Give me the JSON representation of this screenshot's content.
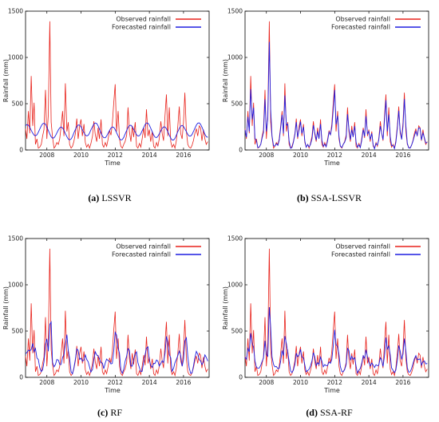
{
  "colors": {
    "observed": "#e8221b",
    "forecast": "#1f1fe0",
    "axis": "#000000"
  },
  "chart_data": [
    {
      "panel": "a",
      "caption_letter": "(a)",
      "caption_label": "LSSVR",
      "type": "line",
      "xlabel": "Time",
      "ylabel": "Rainfall (mm)",
      "xlim": [
        2006.75,
        2017.5
      ],
      "ylim": [
        0,
        1500
      ],
      "xticks": [
        2008,
        2010,
        2012,
        2014,
        2016
      ],
      "yticks": [
        0,
        500,
        1000,
        1500
      ],
      "legend_position": "top-right",
      "series": [
        {
          "name": "Observed rainfall",
          "color_key": "observed"
        },
        {
          "name": "Forecasted rainfall",
          "color_key": "forecast"
        }
      ],
      "forecast_mode": "smooth"
    },
    {
      "panel": "b",
      "caption_letter": "(b)",
      "caption_label": "SSA-LSSVR",
      "type": "line",
      "xlabel": "Time",
      "ylabel": "Rainfall (mm)",
      "xlim": [
        2006.75,
        2017.5
      ],
      "ylim": [
        0,
        1500
      ],
      "xticks": [
        2008,
        2010,
        2012,
        2014,
        2016
      ],
      "yticks": [
        0,
        500,
        1000,
        1500
      ],
      "legend_position": "top-right",
      "series": [
        {
          "name": "Observed rainfall",
          "color_key": "observed"
        },
        {
          "name": "Forecasted rainfall",
          "color_key": "forecast"
        }
      ],
      "forecast_mode": "track"
    },
    {
      "panel": "c",
      "caption_letter": "(c)",
      "caption_label": "RF",
      "type": "line",
      "xlabel": "Time",
      "ylabel": "Rainfall (mm)",
      "xlim": [
        2006.75,
        2017.5
      ],
      "ylim": [
        0,
        1500
      ],
      "xticks": [
        2008,
        2010,
        2012,
        2014,
        2016
      ],
      "yticks": [
        0,
        500,
        1000,
        1500
      ],
      "legend_position": "top-right",
      "series": [
        {
          "name": "Observed rainfall",
          "color_key": "observed"
        },
        {
          "name": "Forecasted rainfall",
          "color_key": "forecast"
        }
      ],
      "forecast_mode": "noisy"
    },
    {
      "panel": "d",
      "caption_letter": "(d)",
      "caption_label": "SSA-RF",
      "type": "line",
      "xlabel": "Time",
      "ylabel": "Rainfall (mm)",
      "xlim": [
        2006.75,
        2017.5
      ],
      "ylim": [
        0,
        1500
      ],
      "xticks": [
        2008,
        2010,
        2012,
        2014,
        2016
      ],
      "yticks": [
        0,
        500,
        1000,
        1500
      ],
      "legend_position": "top-right",
      "series": [
        {
          "name": "Observed rainfall",
          "color_key": "observed"
        },
        {
          "name": "Forecasted rainfall",
          "color_key": "forecast"
        }
      ],
      "forecast_mode": "partial"
    }
  ],
  "observed_rainfall": [
    {
      "x": 2006.75,
      "y": 230
    },
    {
      "x": 2006.83,
      "y": 120
    },
    {
      "x": 2006.92,
      "y": 420
    },
    {
      "x": 2007.0,
      "y": 180
    },
    {
      "x": 2007.08,
      "y": 800
    },
    {
      "x": 2007.17,
      "y": 260
    },
    {
      "x": 2007.25,
      "y": 510
    },
    {
      "x": 2007.33,
      "y": 60
    },
    {
      "x": 2007.42,
      "y": 120
    },
    {
      "x": 2007.5,
      "y": 20
    },
    {
      "x": 2007.58,
      "y": 30
    },
    {
      "x": 2007.67,
      "y": 60
    },
    {
      "x": 2007.75,
      "y": 150
    },
    {
      "x": 2007.83,
      "y": 220
    },
    {
      "x": 2007.92,
      "y": 650
    },
    {
      "x": 2008.0,
      "y": 120
    },
    {
      "x": 2008.08,
      "y": 380
    },
    {
      "x": 2008.17,
      "y": 1390
    },
    {
      "x": 2008.25,
      "y": 300
    },
    {
      "x": 2008.33,
      "y": 140
    },
    {
      "x": 2008.42,
      "y": 20
    },
    {
      "x": 2008.5,
      "y": 40
    },
    {
      "x": 2008.58,
      "y": 80
    },
    {
      "x": 2008.67,
      "y": 60
    },
    {
      "x": 2008.75,
      "y": 120
    },
    {
      "x": 2008.83,
      "y": 250
    },
    {
      "x": 2008.92,
      "y": 420
    },
    {
      "x": 2009.0,
      "y": 150
    },
    {
      "x": 2009.08,
      "y": 720
    },
    {
      "x": 2009.17,
      "y": 200
    },
    {
      "x": 2009.25,
      "y": 300
    },
    {
      "x": 2009.33,
      "y": 60
    },
    {
      "x": 2009.42,
      "y": 20
    },
    {
      "x": 2009.5,
      "y": 40
    },
    {
      "x": 2009.58,
      "y": 90
    },
    {
      "x": 2009.67,
      "y": 180
    },
    {
      "x": 2009.75,
      "y": 340
    },
    {
      "x": 2009.83,
      "y": 120
    },
    {
      "x": 2009.92,
      "y": 260
    },
    {
      "x": 2010.0,
      "y": 330
    },
    {
      "x": 2010.08,
      "y": 150
    },
    {
      "x": 2010.17,
      "y": 280
    },
    {
      "x": 2010.25,
      "y": 80
    },
    {
      "x": 2010.33,
      "y": 30
    },
    {
      "x": 2010.42,
      "y": 60
    },
    {
      "x": 2010.5,
      "y": 20
    },
    {
      "x": 2010.58,
      "y": 70
    },
    {
      "x": 2010.67,
      "y": 150
    },
    {
      "x": 2010.75,
      "y": 310
    },
    {
      "x": 2010.83,
      "y": 170
    },
    {
      "x": 2010.92,
      "y": 90
    },
    {
      "x": 2011.0,
      "y": 240
    },
    {
      "x": 2011.08,
      "y": 120
    },
    {
      "x": 2011.17,
      "y": 330
    },
    {
      "x": 2011.25,
      "y": 60
    },
    {
      "x": 2011.33,
      "y": 30
    },
    {
      "x": 2011.42,
      "y": 80
    },
    {
      "x": 2011.5,
      "y": 40
    },
    {
      "x": 2011.58,
      "y": 110
    },
    {
      "x": 2011.67,
      "y": 210
    },
    {
      "x": 2011.75,
      "y": 160
    },
    {
      "x": 2011.83,
      "y": 280
    },
    {
      "x": 2011.92,
      "y": 520
    },
    {
      "x": 2012.0,
      "y": 710
    },
    {
      "x": 2012.08,
      "y": 200
    },
    {
      "x": 2012.17,
      "y": 420
    },
    {
      "x": 2012.25,
      "y": 120
    },
    {
      "x": 2012.33,
      "y": 40
    },
    {
      "x": 2012.42,
      "y": 20
    },
    {
      "x": 2012.5,
      "y": 60
    },
    {
      "x": 2012.58,
      "y": 90
    },
    {
      "x": 2012.67,
      "y": 160
    },
    {
      "x": 2012.75,
      "y": 460
    },
    {
      "x": 2012.83,
      "y": 200
    },
    {
      "x": 2012.92,
      "y": 90
    },
    {
      "x": 2013.0,
      "y": 260
    },
    {
      "x": 2013.08,
      "y": 140
    },
    {
      "x": 2013.17,
      "y": 300
    },
    {
      "x": 2013.25,
      "y": 40
    },
    {
      "x": 2013.33,
      "y": 20
    },
    {
      "x": 2013.42,
      "y": 70
    },
    {
      "x": 2013.5,
      "y": 30
    },
    {
      "x": 2013.58,
      "y": 120
    },
    {
      "x": 2013.67,
      "y": 240
    },
    {
      "x": 2013.75,
      "y": 130
    },
    {
      "x": 2013.83,
      "y": 440
    },
    {
      "x": 2013.92,
      "y": 150
    },
    {
      "x": 2014.0,
      "y": 220
    },
    {
      "x": 2014.08,
      "y": 90
    },
    {
      "x": 2014.17,
      "y": 200
    },
    {
      "x": 2014.25,
      "y": 40
    },
    {
      "x": 2014.33,
      "y": 20
    },
    {
      "x": 2014.42,
      "y": 80
    },
    {
      "x": 2014.5,
      "y": 40
    },
    {
      "x": 2014.58,
      "y": 120
    },
    {
      "x": 2014.67,
      "y": 310
    },
    {
      "x": 2014.75,
      "y": 180
    },
    {
      "x": 2014.83,
      "y": 100
    },
    {
      "x": 2014.92,
      "y": 380
    },
    {
      "x": 2015.0,
      "y": 600
    },
    {
      "x": 2015.08,
      "y": 150
    },
    {
      "x": 2015.17,
      "y": 460
    },
    {
      "x": 2015.25,
      "y": 90
    },
    {
      "x": 2015.33,
      "y": 30
    },
    {
      "x": 2015.42,
      "y": 60
    },
    {
      "x": 2015.5,
      "y": 20
    },
    {
      "x": 2015.58,
      "y": 100
    },
    {
      "x": 2015.67,
      "y": 260
    },
    {
      "x": 2015.75,
      "y": 470
    },
    {
      "x": 2015.83,
      "y": 180
    },
    {
      "x": 2015.92,
      "y": 120
    },
    {
      "x": 2016.0,
      "y": 300
    },
    {
      "x": 2016.08,
      "y": 620
    },
    {
      "x": 2016.17,
      "y": 200
    },
    {
      "x": 2016.25,
      "y": 60
    },
    {
      "x": 2016.33,
      "y": 30
    },
    {
      "x": 2016.42,
      "y": 20
    },
    {
      "x": 2016.5,
      "y": 50
    },
    {
      "x": 2016.58,
      "y": 100
    },
    {
      "x": 2016.67,
      "y": 180
    },
    {
      "x": 2016.75,
      "y": 230
    },
    {
      "x": 2016.83,
      "y": 150
    },
    {
      "x": 2016.92,
      "y": 260
    },
    {
      "x": 2017.0,
      "y": 240
    },
    {
      "x": 2017.08,
      "y": 100
    },
    {
      "x": 2017.17,
      "y": 220
    },
    {
      "x": 2017.25,
      "y": 120
    },
    {
      "x": 2017.33,
      "y": 60
    },
    {
      "x": 2017.42,
      "y": 90
    }
  ]
}
